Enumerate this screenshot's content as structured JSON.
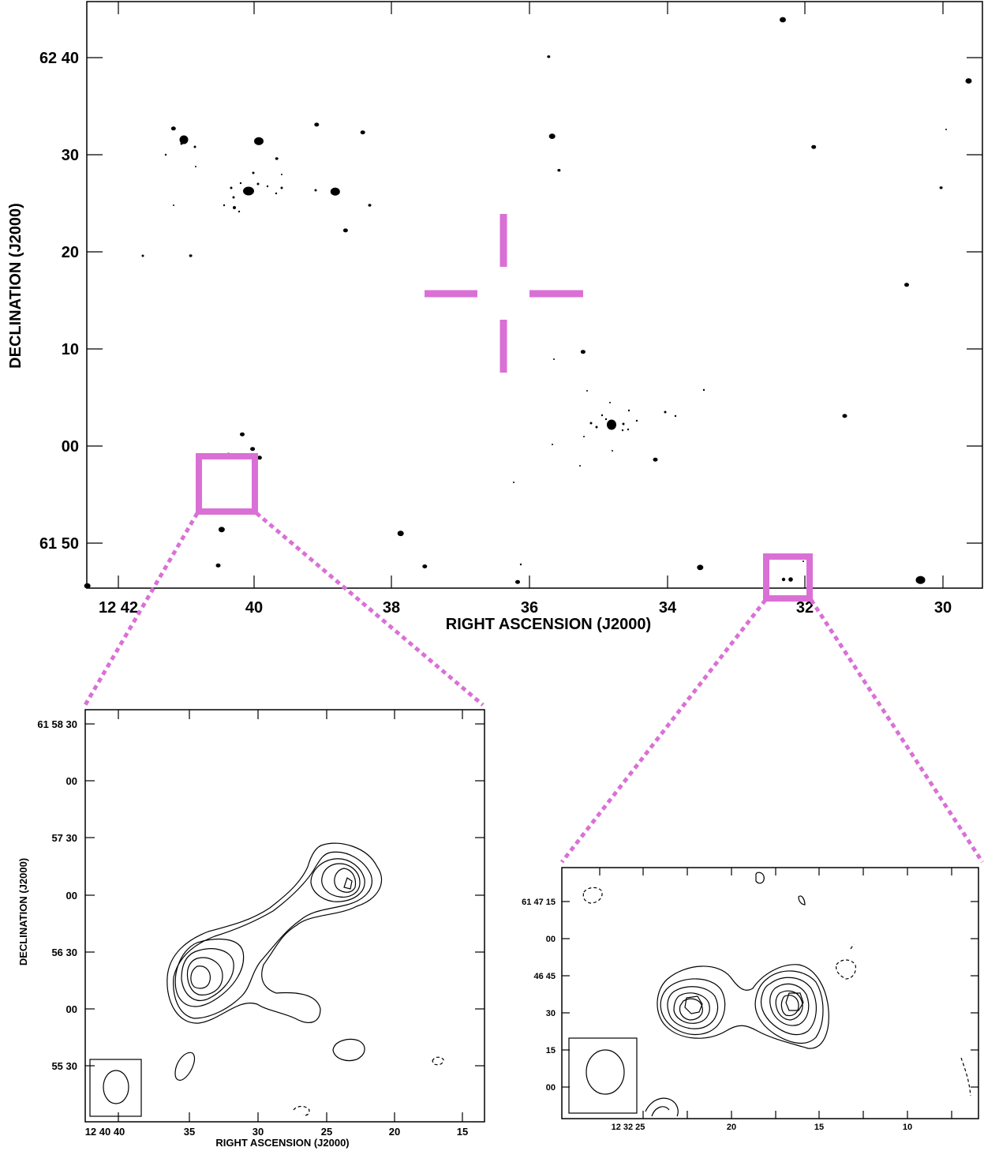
{
  "colors": {
    "marker": "#DA70D6",
    "ink": "#000000",
    "background": "#FFFFFF"
  },
  "main_map": {
    "xlabel": "RIGHT ASCENSION (J2000)",
    "ylabel": "DECLINATION (J2000)",
    "x_ticks": [
      "12 42",
      "40",
      "38",
      "36",
      "34",
      "32",
      "30"
    ],
    "y_ticks": [
      "62 40",
      "30",
      "20",
      "10",
      "00",
      "61 50"
    ]
  },
  "inset_left": {
    "xlabel": "RIGHT ASCENSION (J2000)",
    "ylabel": "DECLINATION (J2000)",
    "x_ticks": [
      "12 40 40",
      "35",
      "30",
      "25",
      "20",
      "15"
    ],
    "y_ticks": [
      "61 58 30",
      "00",
      "57 30",
      "00",
      "56 30",
      "00",
      "55 30"
    ]
  },
  "inset_right": {
    "x_ticks": [
      "12 32 25",
      "20",
      "15",
      "10"
    ],
    "y_ticks": [
      "61 47 15",
      "00",
      "46 45",
      "30",
      "15",
      "00"
    ]
  },
  "chart_data": [
    {
      "type": "scatter",
      "panel": "main radio map",
      "x_unit": "RA minutes (12h)",
      "y_unit": "Dec arcmin offset from 61 50 (DEC = 61d50' + y)",
      "xlim": [
        42.4,
        29.5
      ],
      "ylim": [
        -4.5,
        55.5
      ],
      "grid": false,
      "sources": [
        {
          "x": 42.45,
          "y": -4.4,
          "r": 4
        },
        {
          "x": 41.2,
          "y": 42.7,
          "r": 3
        },
        {
          "x": 40.95,
          "y": 29.6,
          "r": 2
        },
        {
          "x": 40.4,
          "y": 9.1,
          "r": 3
        },
        {
          "x": 40.5,
          "y": 1.4,
          "r": 4
        },
        {
          "x": 40.55,
          "y": -2.3,
          "r": 3
        },
        {
          "x": 40.2,
          "y": 11.2,
          "r": 3
        },
        {
          "x": 40.05,
          "y": 9.7,
          "r": 3
        },
        {
          "x": 39.95,
          "y": 8.8,
          "r": 3
        },
        {
          "x": 39.96,
          "y": 41.4,
          "r": 6
        },
        {
          "x": 39.7,
          "y": 39.6,
          "r": 2
        },
        {
          "x": 39.12,
          "y": 43.1,
          "r": 3
        },
        {
          "x": 38.85,
          "y": 36.2,
          "r": 6
        },
        {
          "x": 38.7,
          "y": 32.2,
          "r": 3
        },
        {
          "x": 38.45,
          "y": 42.3,
          "r": 3
        },
        {
          "x": 38.35,
          "y": 34.8,
          "r": 2
        },
        {
          "x": 37.9,
          "y": 1.0,
          "r": 4
        },
        {
          "x": 37.55,
          "y": -2.4,
          "r": 3
        },
        {
          "x": 36.2,
          "y": -4.0,
          "r": 3
        },
        {
          "x": 35.75,
          "y": 50.1,
          "r": 2
        },
        {
          "x": 35.7,
          "y": 41.9,
          "r": 4
        },
        {
          "x": 35.6,
          "y": 38.4,
          "r": 2
        },
        {
          "x": 35.25,
          "y": 19.7,
          "r": 3
        },
        {
          "x": 34.2,
          "y": 8.6,
          "r": 3
        },
        {
          "x": 33.55,
          "y": -2.5,
          "r": 4
        },
        {
          "x": 32.35,
          "y": 53.9,
          "r": 4
        },
        {
          "x": 31.9,
          "y": 40.8,
          "r": 3
        },
        {
          "x": 31.45,
          "y": 13.1,
          "r": 3
        },
        {
          "x": 30.55,
          "y": 26.6,
          "r": 3
        },
        {
          "x": 30.35,
          "y": -3.8,
          "r": 6
        },
        {
          "x": 30.05,
          "y": 36.6,
          "r": 2
        },
        {
          "x": 29.65,
          "y": 47.6,
          "r": 4
        },
        {
          "x": 29.2,
          "y": 33.4,
          "r": 5
        },
        {
          "x": 28.65,
          "y": 37.3,
          "r": 4
        },
        {
          "x": 27.95,
          "y": 5.6,
          "r": 2
        },
        {
          "x": 27.65,
          "y": 34.6,
          "r": 5
        },
        {
          "x": 26.9,
          "y": -1.3,
          "r": 5
        },
        {
          "x": 26.3,
          "y": 24.8,
          "r": 2
        },
        {
          "x": 25.8,
          "y": 15.7,
          "r": 3
        },
        {
          "x": 25.6,
          "y": 26.7,
          "r": 3
        },
        {
          "x": 25.3,
          "y": 29.3,
          "r": 3
        },
        {
          "x": 24.7,
          "y": 14.3,
          "r": 3
        },
        {
          "x": 24.45,
          "y": 13.8,
          "r": 3
        }
      ],
      "clusters": [
        {
          "x": 40.2,
          "y": 26.3,
          "core_r": 7
        },
        {
          "x": 34.8,
          "y": 2.3,
          "core_r": 6
        }
      ],
      "pointing_center": {
        "x": 36.4,
        "y": 15.7
      }
    },
    {
      "type": "contour",
      "panel": "left inset (zoom of box near 12 40)",
      "xlim": [
        40.5,
        13.0
      ],
      "ylim": [
        55.0,
        58.8
      ],
      "levels": 6
    },
    {
      "type": "contour",
      "panel": "right inset (zoom of box near 12 32)",
      "xlim": [
        27.5,
        3.0
      ],
      "ylim": [
        -10,
        25
      ],
      "levels": 7
    }
  ]
}
